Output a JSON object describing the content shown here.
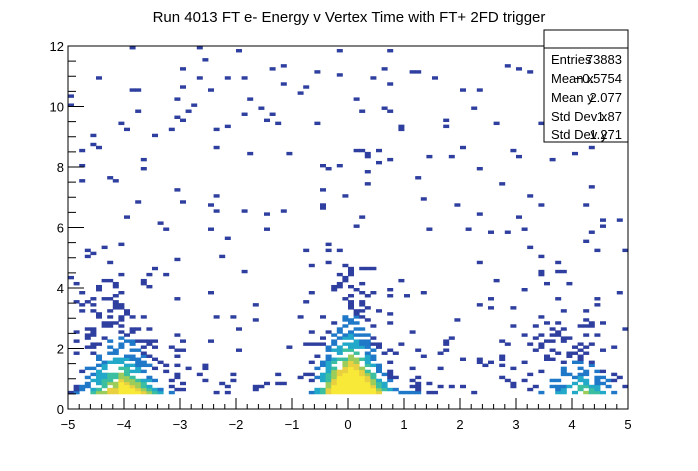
{
  "chart_data": {
    "type": "heatmap",
    "title": "Run 4013 FT e- Energy v Vertex Time with FT+ 2FD trigger",
    "xlabel": "",
    "ylabel": "",
    "xlim": [
      -5,
      5
    ],
    "ylim": [
      0,
      12
    ],
    "x_ticks": [
      -5,
      -4,
      -3,
      -2,
      -1,
      0,
      1,
      2,
      3,
      4,
      5
    ],
    "y_ticks": [
      0,
      2,
      4,
      6,
      8,
      10,
      12
    ],
    "x_tick_labels": [
      "−5",
      "−4",
      "−3",
      "−2",
      "−1",
      "0",
      "1",
      "2",
      "3",
      "4",
      "5"
    ],
    "y_tick_labels": [
      "0",
      "2",
      "4",
      "6",
      "8",
      "10",
      "12"
    ],
    "colors": {
      "palette": [
        "#2f3f9f",
        "#1f78c8",
        "#22a8c8",
        "#3cbfa0",
        "#9ccc5a",
        "#e8d040",
        "#f8e838"
      ]
    },
    "clusters": [
      {
        "name_hint": "t=-4",
        "x_center": -4.1,
        "x_width": 0.45,
        "y_peak": 1.2,
        "y_top": 5.5,
        "density": 0.55
      },
      {
        "name_hint": "t=0",
        "x_center": 0.0,
        "x_width": 0.35,
        "y_peak": 1.0,
        "y_top": 10.3,
        "density": 1.0
      },
      {
        "name_hint": "t=4",
        "x_center": 4.1,
        "x_width": 0.45,
        "y_peak": 1.2,
        "y_top": 4.8,
        "density": 0.3
      }
    ],
    "stats": {
      "entries_label": "Entries",
      "entries_value": "73883",
      "mean_x_label": "Mean x",
      "mean_x_value": "−0.5754",
      "mean_y_label": "Mean y",
      "mean_y_value": "2.077",
      "std_x_label": "Std Dev x",
      "std_x_value": "1.87",
      "std_y_label": "Std Dev y",
      "std_y_value": "1.271"
    },
    "grid": false,
    "legend": "none"
  }
}
